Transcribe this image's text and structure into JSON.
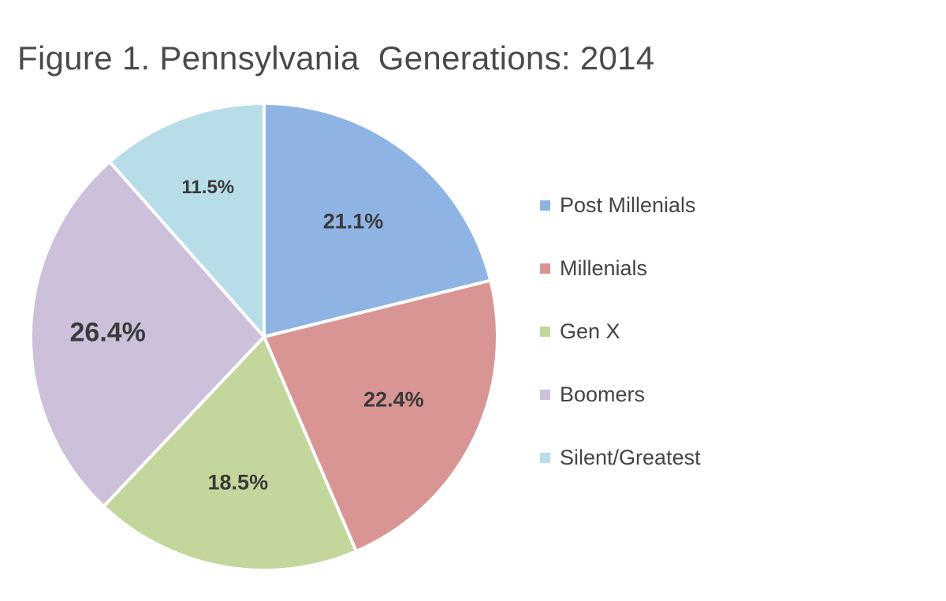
{
  "chart_data": {
    "type": "pie",
    "title": "Figure 1. Pennsylvania  Generations: 2014",
    "unit": "%",
    "legend_position": "right",
    "slices": [
      {
        "name": "Post Millenials",
        "value": 21.1,
        "label": "21.1%",
        "color": "#8eb4e3"
      },
      {
        "name": "Millenials",
        "value": 22.4,
        "label": "22.4%",
        "color": "#d99594"
      },
      {
        "name": "Gen X",
        "value": 18.5,
        "label": "18.5%",
        "color": "#c3d69b"
      },
      {
        "name": "Boomers",
        "value": 26.4,
        "label": "26.4%",
        "color": "#ccc0da"
      },
      {
        "name": "Silent/Greatest",
        "value": 11.5,
        "label": "11.5%",
        "color": "#b7dde8"
      }
    ]
  }
}
